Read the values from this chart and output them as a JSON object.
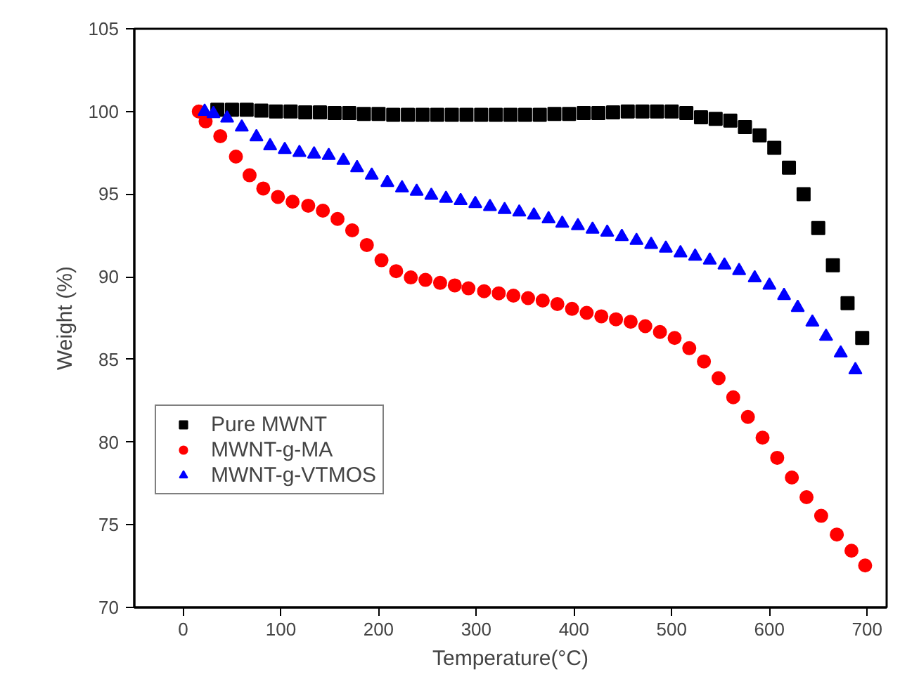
{
  "chart_data": {
    "type": "scatter",
    "xlabel": "Temperature(°C)",
    "ylabel": "Weight (%)",
    "xlim": [
      -50,
      720
    ],
    "ylim": [
      70,
      105
    ],
    "xticks": [
      0,
      100,
      200,
      300,
      400,
      500,
      600,
      700
    ],
    "yticks": [
      70,
      75,
      80,
      85,
      90,
      95,
      100,
      105
    ],
    "grid": false,
    "legend": "left",
    "series": [
      {
        "name": "Pure MWNT",
        "color": "#000000",
        "marker": "square",
        "x": [
          35,
          50,
          65,
          80,
          95,
          110,
          125,
          140,
          155,
          170,
          185,
          200,
          215,
          230,
          245,
          260,
          275,
          290,
          305,
          320,
          335,
          350,
          365,
          380,
          395,
          410,
          425,
          440,
          455,
          470,
          485,
          500,
          515,
          530,
          545,
          560,
          575,
          590,
          605,
          620,
          635,
          650,
          665,
          680,
          695
        ],
        "values": [
          100.1,
          100.1,
          100.1,
          100.05,
          100.0,
          100.0,
          99.95,
          99.95,
          99.9,
          99.9,
          99.85,
          99.85,
          99.8,
          99.8,
          99.8,
          99.8,
          99.8,
          99.8,
          99.8,
          99.8,
          99.8,
          99.8,
          99.8,
          99.85,
          99.85,
          99.9,
          99.9,
          99.95,
          100.0,
          100.0,
          100.0,
          100.0,
          99.9,
          99.65,
          99.55,
          99.45,
          99.05,
          98.55,
          97.8,
          96.6,
          95.0,
          92.95,
          90.7,
          88.4,
          86.3
        ]
      },
      {
        "name": "MWNT-g-MA",
        "color": "#ff0000",
        "marker": "circle",
        "x": [
          16,
          23,
          38,
          54,
          68,
          82,
          97,
          112,
          128,
          143,
          158,
          173,
          188,
          203,
          218,
          233,
          248,
          263,
          278,
          292,
          308,
          323,
          338,
          353,
          368,
          383,
          398,
          413,
          428,
          443,
          458,
          473,
          488,
          503,
          518,
          533,
          548,
          563,
          578,
          593,
          608,
          623,
          638,
          653,
          669,
          684,
          698
        ],
        "values": [
          100.0,
          99.4,
          98.5,
          97.27,
          96.14,
          95.34,
          94.83,
          94.54,
          94.3,
          94.0,
          93.5,
          92.81,
          91.92,
          91.0,
          90.34,
          89.96,
          89.81,
          89.63,
          89.48,
          89.3,
          89.13,
          89.0,
          88.86,
          88.71,
          88.56,
          88.35,
          88.06,
          87.82,
          87.61,
          87.43,
          87.28,
          87.01,
          86.66,
          86.3,
          85.68,
          84.88,
          83.87,
          82.71,
          81.52,
          80.27,
          79.05,
          77.86,
          76.67,
          75.54,
          74.41,
          73.43,
          72.54
        ]
      },
      {
        "name": "MWNT-g-VTMOS",
        "color": "#0000ff",
        "marker": "triangle",
        "x": [
          22,
          31,
          45,
          60,
          75,
          89,
          104,
          119,
          134,
          149,
          164,
          178,
          193,
          209,
          224,
          239,
          254,
          269,
          284,
          299,
          314,
          329,
          344,
          359,
          374,
          388,
          404,
          419,
          434,
          449,
          464,
          479,
          494,
          509,
          524,
          539,
          554,
          569,
          585,
          600,
          615,
          629,
          644,
          658,
          673,
          688
        ],
        "values": [
          100.0,
          99.86,
          99.59,
          99.05,
          98.46,
          97.92,
          97.69,
          97.51,
          97.42,
          97.33,
          97.03,
          96.59,
          96.14,
          95.7,
          95.37,
          95.16,
          94.92,
          94.74,
          94.6,
          94.42,
          94.24,
          94.06,
          93.91,
          93.73,
          93.5,
          93.23,
          93.08,
          92.87,
          92.69,
          92.43,
          92.19,
          91.95,
          91.72,
          91.44,
          91.24,
          91.0,
          90.7,
          90.37,
          89.93,
          89.48,
          88.86,
          88.14,
          87.25,
          86.39,
          85.38,
          84.37
        ]
      }
    ]
  }
}
